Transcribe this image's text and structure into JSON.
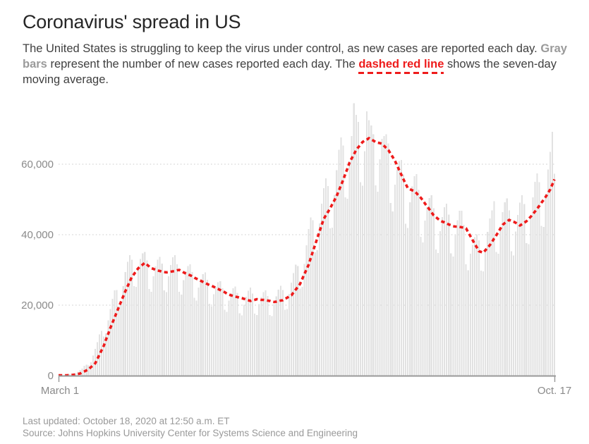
{
  "page": {
    "title": "Coronavirus' spread in US",
    "description": {
      "lead": "The United States is struggling to keep the virus under control, as new cases are reported each day. ",
      "gray_label": "Gray bars",
      "mid": " represent the number of new cases reported each day. The ",
      "red_label": "dashed red line",
      "tail": " shows the seven-day moving average."
    },
    "footer": {
      "last_updated": "Last updated: October 18, 2020 at 12:50 a.m. ET",
      "source": "Source: Johns Hopkins University Center for Systems Science and Engineering"
    }
  },
  "colors": {
    "title_text": "#262626",
    "body_text": "#404040",
    "muted_text": "#999999",
    "axis_label_text": "#8a8a8a",
    "accent_red": "#ee1b1b",
    "bar_gray": "#e2e2e2",
    "gridline": "#cccccc",
    "axis_line": "#999999"
  },
  "chart_data": {
    "type": "bar",
    "title": "Coronavirus' spread in US",
    "xlabel": "",
    "ylabel": "",
    "grid": {
      "horizontal": true,
      "style": "dotted"
    },
    "legend_position": "none",
    "ylim": [
      0,
      78000
    ],
    "y_ticks": [
      0,
      20000,
      40000,
      60000
    ],
    "y_tick_labels": [
      "0",
      "20,000",
      "40,000",
      "60,000"
    ],
    "x_range": {
      "start_label": "March 1",
      "end_label": "Oct. 17",
      "days": 231
    },
    "series": [
      {
        "name": "Daily new reported cases (gray bars)",
        "render": "bar",
        "color": "#e2e2e2",
        "values": [
          100,
          100,
          100,
          200,
          300,
          400,
          500,
          500,
          700,
          1100,
          1600,
          2000,
          2800,
          3100,
          2900,
          3800,
          5700,
          7600,
          9500,
          11700,
          12700,
          11100,
          12000,
          15700,
          18900,
          21800,
          24200,
          24300,
          19700,
          20200,
          25400,
          29400,
          32300,
          34200,
          32900,
          25400,
          25200,
          30400,
          33100,
          34700,
          35100,
          32700,
          24600,
          23800,
          28200,
          31000,
          32900,
          33700,
          31800,
          24200,
          23700,
          28200,
          31400,
          33600,
          34200,
          31600,
          23800,
          23000,
          27100,
          29600,
          31100,
          31600,
          29400,
          22100,
          21300,
          25000,
          27300,
          28800,
          29300,
          27200,
          20400,
          19700,
          23100,
          25200,
          26500,
          26800,
          24800,
          18700,
          18100,
          21300,
          23400,
          24800,
          25300,
          23500,
          17700,
          17100,
          20100,
          22400,
          24100,
          25000,
          23300,
          17600,
          17200,
          20300,
          22300,
          23700,
          24200,
          22600,
          17200,
          16900,
          20300,
          22500,
          24400,
          25500,
          24300,
          18700,
          18900,
          23200,
          26400,
          29100,
          31500,
          31100,
          24700,
          25200,
          31700,
          37000,
          41600,
          44900,
          44100,
          35000,
          35600,
          43200,
          48800,
          53200,
          56000,
          53800,
          41800,
          42000,
          51300,
          58300,
          64100,
          67600,
          65300,
          50600,
          50200,
          60800,
          68000,
          77300,
          74000,
          72000,
          54900,
          53900,
          63700,
          75000,
          72500,
          71000,
          68500,
          54000,
          52200,
          61400,
          67200,
          68000,
          68500,
          65900,
          49000,
          46600,
          54200,
          58500,
          60900,
          61200,
          57100,
          43100,
          41900,
          49200,
          53700,
          56600,
          57200,
          52700,
          39400,
          37800,
          44000,
          47800,
          50400,
          51200,
          47500,
          35800,
          34800,
          41000,
          45000,
          47800,
          48800,
          45700,
          34700,
          33800,
          40000,
          44100,
          46800,
          46800,
          42800,
          31600,
          29900,
          34600,
          37100,
          39300,
          40100,
          38400,
          29800,
          29600,
          36000,
          40800,
          44600,
          46900,
          49500,
          35100,
          34600,
          41500,
          46400,
          49200,
          50300,
          46900,
          35300,
          34100,
          40900,
          45600,
          49100,
          51200,
          48700,
          37600,
          37300,
          45000,
          50600,
          55000,
          57400,
          54900,
          42500,
          42200,
          51500,
          58500,
          63500,
          69200,
          57300
        ]
      },
      {
        "name": "Seven-day moving average (dashed red line)",
        "render": "line",
        "style": "dashed",
        "color": "#ee1b1b",
        "values": [
          70,
          80,
          90,
          90,
          100,
          150,
          200,
          250,
          370,
          480,
          600,
          900,
          1200,
          1500,
          1800,
          2400,
          2900,
          3500,
          4750,
          6000,
          7250,
          8500,
          10200,
          11800,
          13500,
          15000,
          16500,
          18000,
          19500,
          21000,
          22500,
          24000,
          25300,
          26700,
          28000,
          28800,
          29700,
          30500,
          31000,
          31500,
          32000,
          31500,
          31000,
          30500,
          30300,
          30000,
          29800,
          29700,
          29500,
          29400,
          29300,
          29400,
          29500,
          29600,
          29700,
          29900,
          30000,
          29700,
          29300,
          29000,
          28700,
          28500,
          28200,
          27800,
          27500,
          27200,
          26900,
          26600,
          26300,
          26000,
          25700,
          25500,
          25200,
          24900,
          24600,
          24300,
          24000,
          23700,
          23300,
          23000,
          22800,
          22600,
          22400,
          22300,
          22100,
          22000,
          21800,
          21600,
          21400,
          21200,
          21400,
          21500,
          21700,
          21600,
          21500,
          21500,
          21400,
          21300,
          21200,
          21000,
          20900,
          21000,
          21200,
          21300,
          21400,
          21800,
          22100,
          22500,
          22800,
          23600,
          24400,
          25200,
          26000,
          27400,
          28800,
          30100,
          31500,
          33400,
          35300,
          37100,
          39000,
          40800,
          42700,
          44500,
          45500,
          46500,
          47500,
          48700,
          49800,
          51000,
          52500,
          54000,
          55500,
          57200,
          58800,
          60500,
          61700,
          62800,
          64000,
          64800,
          65500,
          66300,
          66700,
          67000,
          67400,
          67000,
          66700,
          66300,
          66100,
          66000,
          65800,
          65200,
          64600,
          64000,
          63000,
          62000,
          61000,
          59700,
          58300,
          57000,
          55700,
          54400,
          53200,
          52900,
          52600,
          52400,
          51800,
          51100,
          50500,
          49700,
          48800,
          48000,
          47200,
          46300,
          45500,
          45000,
          44500,
          44000,
          43700,
          43500,
          43200,
          42900,
          42700,
          42400,
          42300,
          42300,
          42200,
          42100,
          42000,
          41800,
          40700,
          39600,
          38500,
          37400,
          36400,
          35300,
          35100,
          34900,
          35600,
          36300,
          37000,
          37900,
          38900,
          39800,
          40800,
          41800,
          42800,
          43300,
          43700,
          44200,
          43900,
          43700,
          43400,
          43000,
          42600,
          43000,
          43400,
          43800,
          44500,
          45100,
          45800,
          46600,
          47400,
          48200,
          49100,
          49900,
          50800,
          51800,
          52800,
          54200,
          55700
        ]
      }
    ]
  }
}
